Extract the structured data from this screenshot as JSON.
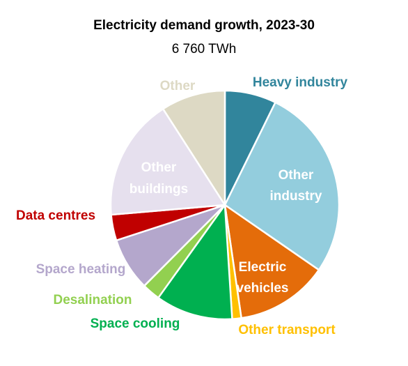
{
  "chart_data": {
    "type": "pie",
    "title": "Electricity demand growth, 2023-30",
    "subtitle": "6 760 TWh",
    "start_angle_deg": 0,
    "direction": "clockwise",
    "slices": [
      {
        "label": "Heavy industry",
        "value": 6.8,
        "color": "#31859c",
        "label_color": "#31859c",
        "label_inside": false
      },
      {
        "label": "Other industry",
        "value": 25.5,
        "color": "#93cddd",
        "label_color": "#ffffff",
        "label_inside": true
      },
      {
        "label": "Electric vehicles",
        "value": 12.2,
        "color": "#e46c0a",
        "label_color": "#ffffff",
        "label_inside": true
      },
      {
        "label": "Other transport",
        "value": 1.2,
        "color": "#ffc000",
        "label_color": "#ffc000",
        "label_inside": false
      },
      {
        "label": "Space cooling",
        "value": 10.2,
        "color": "#00b050",
        "label_color": "#00b050",
        "label_inside": false
      },
      {
        "label": "Desalination",
        "value": 2.4,
        "color": "#92d050",
        "label_color": "#92d050",
        "label_inside": false
      },
      {
        "label": "Space heating",
        "value": 7.0,
        "color": "#b4a7cc",
        "label_color": "#b4a7cc",
        "label_inside": false
      },
      {
        "label": "Data centres",
        "value": 3.4,
        "color": "#c00000",
        "label_color": "#c00000",
        "label_inside": false
      },
      {
        "label": "Other buildings",
        "value": 16.1,
        "color": "#e6e0ee",
        "label_color": "#ffffff",
        "label_inside": true
      },
      {
        "label": "Other",
        "value": 8.5,
        "color": "#ddd9c4",
        "label_color": "#ddd9c4",
        "label_inside": false
      }
    ]
  }
}
